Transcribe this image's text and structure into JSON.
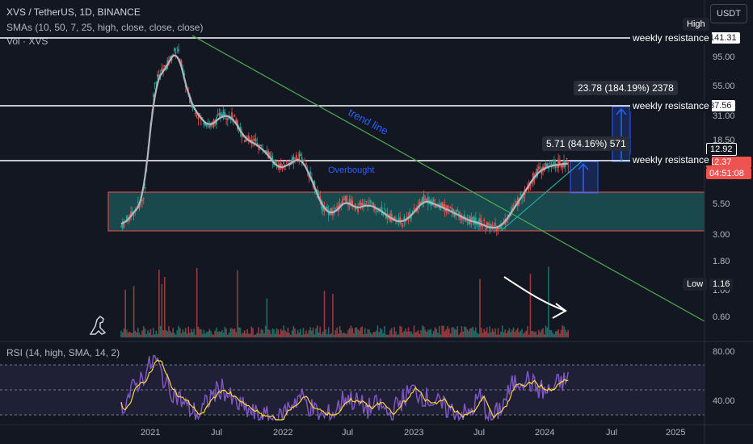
{
  "header": {
    "symbol_line": "XVS / TetherUS, 1D, BINANCE",
    "sma_line": "SMAs (10, 50, 7, 25, high, close, close, close)",
    "vol_line": "Vol · XVS"
  },
  "currency_button": "USDT",
  "high_badge": "High",
  "low_badge": "Low",
  "low_value": "1.16",
  "price_axis": [
    "95.00",
    "55.00",
    "31.00",
    "18.50",
    "5.50",
    "3.00",
    "1.80",
    "1.00",
    "0.60"
  ],
  "price_tags": {
    "high_price": "141.31",
    "res_2": "37.56",
    "res_3": "12.92",
    "last_price": "12.37",
    "countdown": "04:51:08"
  },
  "resistance_label": "weekly resistance",
  "measure_labels": {
    "big": "23.78 (184.19%) 2378",
    "small": "5.71 (84.16%) 571"
  },
  "trend_line_label": "trend line",
  "overlap_text": "Overbought",
  "rsi": {
    "label": "RSI (14, high, SMA, 14, 2)",
    "axis": [
      "80.00",
      "40.00"
    ]
  },
  "time_axis": [
    "2021",
    "Jul",
    "2022",
    "Jul",
    "2023",
    "Jul",
    "2024",
    "Jul",
    "2025"
  ],
  "colors": {
    "background": "#131722",
    "candle_up": "#26a69a",
    "candle_down": "#ef5350",
    "sma": "#b2b5be",
    "trend_line": "#4caf50",
    "measure": "#2962ff",
    "rsi_line": "#7e57c2",
    "rsi_ma": "#fdd835",
    "zone_fill": "#26a69a",
    "zone_border": "#ef5350"
  },
  "chart_data": {
    "type": "candlestick",
    "x_range": [
      "2020-11",
      "2025-03"
    ],
    "y_scale": "log",
    "resistance_levels": [
      141.31,
      37.56,
      12.92
    ],
    "zone": [
      3.1,
      6.9
    ],
    "price": {
      "dates": [
        "2020-11-01",
        "2020-12-01",
        "2021-01-01",
        "2021-02-01",
        "2021-03-01",
        "2021-04-01",
        "2021-05-01",
        "2021-06-01",
        "2021-07-01",
        "2021-08-01",
        "2021-09-01",
        "2021-10-01",
        "2021-11-01",
        "2021-12-01",
        "2022-01-01",
        "2022-02-01",
        "2022-03-01",
        "2022-04-01",
        "2022-05-01",
        "2022-06-01",
        "2022-07-01",
        "2022-08-01",
        "2022-09-01",
        "2022-10-01",
        "2022-11-01",
        "2022-12-01",
        "2023-01-01",
        "2023-02-01",
        "2023-03-01",
        "2023-04-01",
        "2023-05-01",
        "2023-06-01",
        "2023-07-01",
        "2023-08-01",
        "2023-09-01",
        "2023-10-01",
        "2023-11-01",
        "2023-12-01",
        "2024-01-01",
        "2024-02-01",
        "2024-03-01"
      ],
      "values": [
        3.5,
        4.5,
        6.0,
        60.0,
        80.0,
        120.0,
        45.0,
        30.0,
        25.0,
        32.0,
        30.0,
        20.0,
        18.0,
        15.0,
        11.0,
        12.0,
        14.0,
        9.0,
        5.0,
        4.5,
        6.0,
        5.0,
        5.5,
        5.0,
        4.2,
        3.8,
        4.5,
        6.0,
        5.5,
        5.0,
        4.5,
        4.0,
        3.8,
        3.4,
        3.6,
        5.0,
        7.0,
        10.0,
        11.5,
        12.0,
        12.37
      ]
    },
    "rsi_values": [
      45,
      60,
      72,
      85,
      65,
      55,
      45,
      40,
      55,
      62,
      50,
      45,
      40,
      38,
      35,
      48,
      55,
      45,
      38,
      42,
      55,
      50,
      45,
      48,
      40,
      52,
      60,
      55,
      50,
      45,
      42,
      40,
      55,
      35,
      48,
      65,
      70,
      62,
      58,
      65,
      68
    ]
  }
}
